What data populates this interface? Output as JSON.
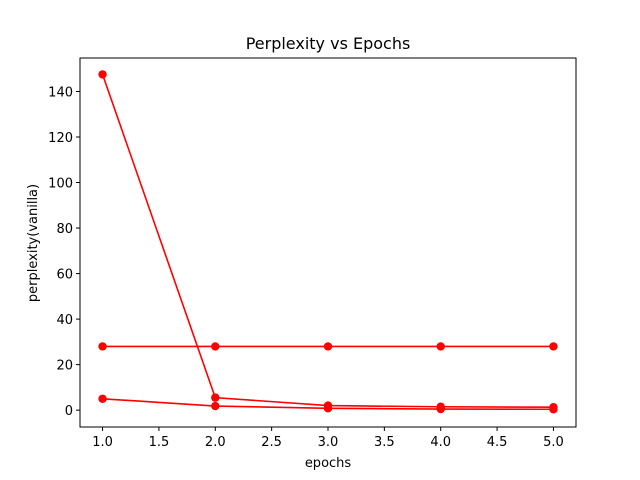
{
  "chart_data": {
    "type": "line",
    "title": "Perplexity vs Epochs",
    "xlabel": "epochs",
    "ylabel": "perplexity(vanilla)",
    "xlim": [
      0.8,
      5.2
    ],
    "ylim": [
      -7.4,
      154.7
    ],
    "xticks": [
      1.0,
      1.5,
      2.0,
      2.5,
      3.0,
      3.5,
      4.0,
      4.5,
      5.0
    ],
    "yticks": [
      0,
      20,
      40,
      60,
      80,
      100,
      120,
      140
    ],
    "xtick_labels": [
      "1.0",
      "1.5",
      "2.0",
      "2.5",
      "3.0",
      "3.5",
      "4.0",
      "4.5",
      "5.0"
    ],
    "ytick_labels": [
      "0",
      "20",
      "40",
      "60",
      "80",
      "100",
      "120",
      "140"
    ],
    "grid": false,
    "line_color": "#ff0000",
    "series": [
      {
        "x": [
          1,
          2,
          3,
          4,
          5
        ],
        "values": [
          147.5,
          5.5,
          2.0,
          1.5,
          1.3
        ]
      },
      {
        "x": [
          1,
          2,
          3,
          4,
          5
        ],
        "values": [
          28.0,
          28.0,
          28.0,
          28.0,
          28.0
        ]
      },
      {
        "x": [
          1,
          2,
          3,
          4,
          5
        ],
        "values": [
          5.0,
          1.8,
          0.8,
          0.5,
          0.4
        ]
      }
    ]
  }
}
